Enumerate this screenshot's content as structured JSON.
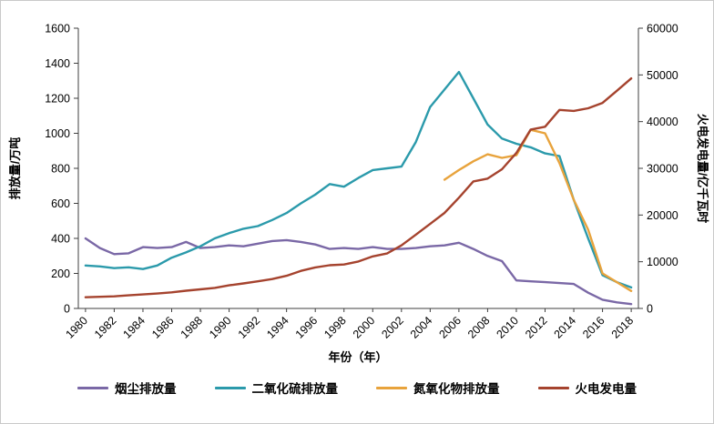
{
  "figure": {
    "x_axis_title": "年份（年）",
    "y_left_title": "排放量/万吨",
    "y_right_title": "火电发电量/亿千瓦时"
  },
  "chart_data": {
    "type": "line",
    "grid": false,
    "legend_position": "bottom",
    "x": [
      1980,
      1981,
      1982,
      1983,
      1984,
      1985,
      1986,
      1987,
      1988,
      1989,
      1990,
      1991,
      1992,
      1993,
      1994,
      1995,
      1996,
      1997,
      1998,
      1999,
      2000,
      2001,
      2002,
      2003,
      2004,
      2005,
      2006,
      2007,
      2008,
      2009,
      2010,
      2011,
      2012,
      2013,
      2014,
      2015,
      2016,
      2017,
      2018
    ],
    "x_tick_labels": [
      "1980",
      "1982",
      "1984",
      "1986",
      "1988",
      "1990",
      "1992",
      "1994",
      "1996",
      "1998",
      "2000",
      "2002",
      "2004",
      "2006",
      "2008",
      "2010",
      "2012",
      "2014",
      "2016",
      "2018"
    ],
    "y_left": {
      "label": "排放量/万吨",
      "min": 0,
      "max": 1600,
      "step": 200,
      "ticks": [
        "0",
        "200",
        "400",
        "600",
        "800",
        "1000",
        "1200",
        "1400",
        "1600"
      ]
    },
    "y_right": {
      "label": "火电发电量/亿千瓦时",
      "min": 0,
      "max": 60000,
      "step": 10000,
      "ticks": [
        "0",
        "10000",
        "20000",
        "30000",
        "40000",
        "50000",
        "60000"
      ]
    },
    "series": [
      {
        "name": "烟尘排放量",
        "color": "#7A68A6",
        "axis": "left",
        "values": [
          400,
          345,
          310,
          315,
          350,
          345,
          350,
          380,
          345,
          350,
          360,
          355,
          370,
          385,
          390,
          380,
          365,
          340,
          345,
          340,
          350,
          340,
          340,
          345,
          355,
          360,
          375,
          340,
          300,
          270,
          160,
          155,
          150,
          145,
          140,
          90,
          50,
          35,
          25
        ]
      },
      {
        "name": "二氧化硫排放量",
        "color": "#2B9AAB",
        "axis": "left",
        "values": [
          245,
          240,
          230,
          235,
          225,
          245,
          290,
          320,
          355,
          400,
          430,
          455,
          470,
          505,
          545,
          600,
          650,
          710,
          695,
          745,
          790,
          800,
          810,
          950,
          1150,
          1250,
          1350,
          1200,
          1050,
          970,
          940,
          920,
          885,
          870,
          620,
          400,
          190,
          150,
          120
        ]
      },
      {
        "name": "氮氧化物排放量",
        "color": "#E8A33C",
        "axis": "left",
        "values": [
          null,
          null,
          null,
          null,
          null,
          null,
          null,
          null,
          null,
          null,
          null,
          null,
          null,
          null,
          null,
          null,
          null,
          null,
          null,
          null,
          null,
          null,
          null,
          null,
          null,
          735,
          790,
          840,
          880,
          860,
          875,
          1020,
          1000,
          830,
          620,
          450,
          200,
          150,
          100
        ]
      },
      {
        "name": "火电发电量",
        "color": "#A5432E",
        "axis": "right",
        "values": [
          2400,
          2500,
          2600,
          2800,
          3000,
          3200,
          3450,
          3800,
          4100,
          4400,
          4950,
          5350,
          5800,
          6300,
          7000,
          8050,
          8780,
          9250,
          9400,
          10050,
          11150,
          11770,
          13500,
          15800,
          18100,
          20450,
          23700,
          27200,
          27800,
          29800,
          33300,
          38300,
          38900,
          42500,
          42300,
          42850,
          44000,
          46600,
          49250
        ]
      }
    ]
  }
}
